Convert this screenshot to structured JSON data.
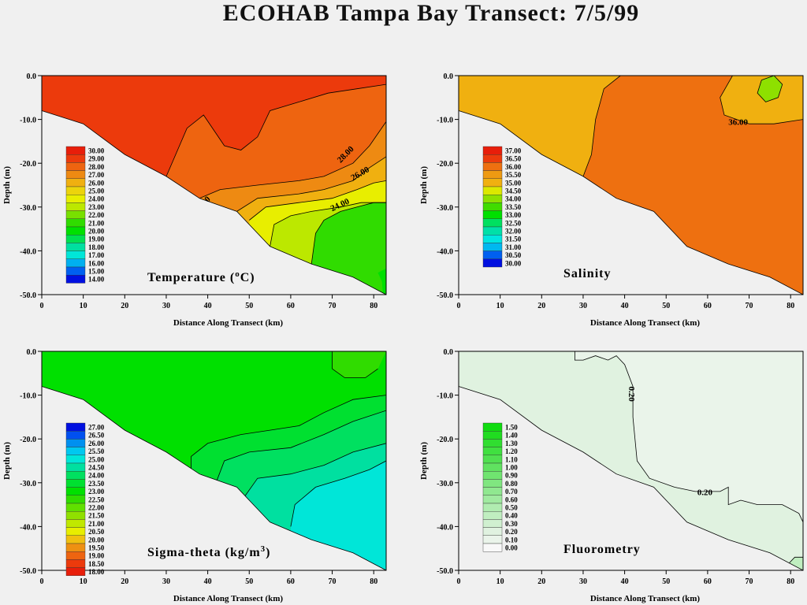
{
  "title": "ECOHAB Tampa Bay Transect: 7/5/99",
  "chart_data": [
    {
      "type": "heatmap",
      "title": "Temperature (°C)",
      "title_main": "Temperature (",
      "title_sup": "o",
      "title_tail": "C)",
      "xlabel": "Distance Along Transect (km)",
      "ylabel": "Depth (m)",
      "xlim": [
        0,
        83
      ],
      "ylim": [
        -50,
        0
      ],
      "xticks": [
        "0",
        "10",
        "20",
        "30",
        "40",
        "50",
        "60",
        "70",
        "80"
      ],
      "yticks": [
        "0.0",
        "-10.0",
        "-20.0",
        "-30.0",
        "-40.0",
        "-50.0"
      ],
      "legend": [
        "30.00",
        "29.00",
        "28.00",
        "27.00",
        "26.00",
        "25.00",
        "24.00",
        "23.00",
        "22.00",
        "21.00",
        "20.00",
        "19.00",
        "18.00",
        "17.00",
        "16.00",
        "15.00",
        "14.00"
      ],
      "contour_labels": [
        "28.00",
        "26.00",
        "24.00",
        "0"
      ]
    },
    {
      "type": "heatmap",
      "title": "Salinity",
      "xlabel": "Distance Along Transect (km)",
      "ylabel": "Depth (m)",
      "xlim": [
        0,
        83
      ],
      "ylim": [
        -50,
        0
      ],
      "xticks": [
        "0",
        "10",
        "20",
        "30",
        "40",
        "50",
        "60",
        "70",
        "80"
      ],
      "yticks": [
        "0.0",
        "-10.0",
        "-20.0",
        "-30.0",
        "-40.0",
        "-50.0"
      ],
      "legend": [
        "37.00",
        "36.50",
        "36.00",
        "35.50",
        "35.00",
        "34.50",
        "34.00",
        "33.50",
        "33.00",
        "32.50",
        "32.00",
        "31.50",
        "31.00",
        "30.50",
        "30.00"
      ],
      "contour_labels": [
        "36.00"
      ]
    },
    {
      "type": "heatmap",
      "title": "Sigma-theta (kg/m³)",
      "title_main": "Sigma-theta  (kg/m",
      "title_sup": "3",
      "title_tail": ")",
      "xlabel": "Distance Along Transect (km)",
      "ylabel": "Depth (m)",
      "xlim": [
        0,
        83
      ],
      "ylim": [
        -50,
        0
      ],
      "xticks": [
        "0",
        "10",
        "20",
        "30",
        "40",
        "50",
        "60",
        "70",
        "80"
      ],
      "yticks": [
        "0.0",
        "-10.0",
        "-20.0",
        "-30.0",
        "-40.0",
        "-50.0"
      ],
      "legend": [
        "27.00",
        "26.50",
        "26.00",
        "25.50",
        "25.00",
        "24.50",
        "24.00",
        "23.50",
        "23.00",
        "22.50",
        "22.00",
        "21.50",
        "21.00",
        "20.50",
        "20.00",
        "19.50",
        "19.00",
        "18.50",
        "18.00"
      ],
      "contour_labels": []
    },
    {
      "type": "heatmap",
      "title": "Fluorometry",
      "xlabel": "Distance Along Transect (km)",
      "ylabel": "Depth (m)",
      "xlim": [
        0,
        83
      ],
      "ylim": [
        -50,
        0
      ],
      "xticks": [
        "0",
        "10",
        "20",
        "30",
        "40",
        "50",
        "60",
        "70",
        "80"
      ],
      "yticks": [
        "0.0",
        "-10.0",
        "-20.0",
        "-30.0",
        "-40.0",
        "-50.0"
      ],
      "legend": [
        "1.50",
        "1.40",
        "1.30",
        "1.20",
        "1.10",
        "1.00",
        "0.90",
        "0.80",
        "0.70",
        "0.60",
        "0.50",
        "0.40",
        "0.30",
        "0.20",
        "0.10",
        "0.00"
      ],
      "contour_labels": [
        "0.20",
        "0.20"
      ]
    }
  ],
  "colors": {
    "temp": [
      "#e81e0a",
      "#ec3a0c",
      "#ee6410",
      "#ee8a12",
      "#f0b010",
      "#ecd40c",
      "#e8ee00",
      "#bce800",
      "#78e000",
      "#30dc00",
      "#00e000",
      "#00e050",
      "#00e0a0",
      "#00e6d8",
      "#00b0f0",
      "#0060f0",
      "#0010e0"
    ],
    "sal": [
      "#e81e0a",
      "#ec3a0c",
      "#ee7010",
      "#ee9a12",
      "#f0b010",
      "#dce800",
      "#8ee000",
      "#40dc00",
      "#00e000",
      "#00e060",
      "#00e0a8",
      "#00e6e0",
      "#00b8f0",
      "#0060f0",
      "#0010e0"
    ],
    "sig": [
      "#0010e0",
      "#0050f0",
      "#0090f0",
      "#00c8f0",
      "#00e6d8",
      "#00e0a0",
      "#00e060",
      "#00e030",
      "#00e000",
      "#30dc00",
      "#60e000",
      "#90e000",
      "#c0e800",
      "#e8ee00",
      "#f0c010",
      "#ee9012",
      "#ee6410",
      "#ec3a0c",
      "#e81e0a"
    ],
    "fluor": [
      "#10dc10",
      "#20dc20",
      "#30de30",
      "#40e040",
      "#50e050",
      "#60e260",
      "#70e470",
      "#80e680",
      "#90e890",
      "#a0eaa0",
      "#b0ecb0",
      "#c0eec0",
      "#d0f0d0",
      "#e0f2e0",
      "#eaf4ea",
      "#f8f8f8"
    ]
  }
}
